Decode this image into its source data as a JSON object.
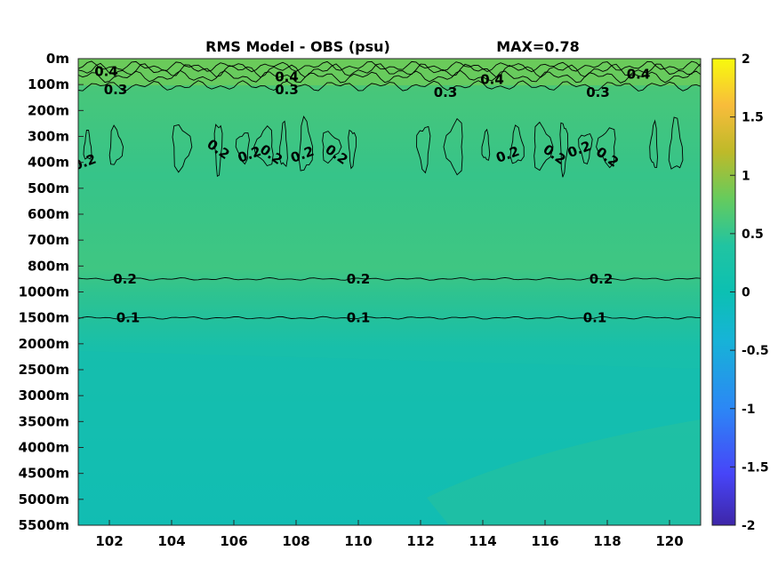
{
  "chart_data": {
    "type": "heatmap",
    "title": "RMS Model - OBS (psu)",
    "max_label": "MAX=0.78",
    "xlim": [
      101,
      121
    ],
    "x_ticks": [
      "102",
      "104",
      "106",
      "108",
      "110",
      "112",
      "114",
      "116",
      "118",
      "120"
    ],
    "y_ticks": [
      "0m",
      "100m",
      "200m",
      "300m",
      "400m",
      "500m",
      "600m",
      "700m",
      "800m",
      "1000m",
      "1500m",
      "2000m",
      "2500m",
      "3000m",
      "3500m",
      "4000m",
      "4500m",
      "5000m",
      "5500m"
    ],
    "colorbar": {
      "range": [
        -2,
        2
      ],
      "ticks": [
        "2",
        "1.5",
        "1",
        "0.5",
        "0",
        "-0.5",
        "-1",
        "-1.5",
        "-2"
      ]
    },
    "colormap": [
      "#3e26a8",
      "#4745f8",
      "#2c87f5",
      "#16b4d6",
      "#0cc0b2",
      "#21c4a1",
      "#66cb5d",
      "#beba29",
      "#f8bc3b",
      "#f8fa0d"
    ],
    "contour_levels": [
      0.1,
      0.2,
      0.3,
      0.4
    ],
    "contour_labels": [
      {
        "text": "0.4",
        "x": 101.9,
        "depth_m": 50
      },
      {
        "text": "0.3",
        "x": 102.2,
        "depth_m": 120
      },
      {
        "text": "0.4",
        "x": 107.7,
        "depth_m": 70
      },
      {
        "text": "0.3",
        "x": 107.7,
        "depth_m": 120
      },
      {
        "text": "0.4",
        "x": 114.3,
        "depth_m": 80
      },
      {
        "text": "0.3",
        "x": 112.8,
        "depth_m": 130
      },
      {
        "text": "0.4",
        "x": 119.0,
        "depth_m": 60
      },
      {
        "text": "0.3",
        "x": 117.7,
        "depth_m": 130
      },
      {
        "text": "0.2",
        "x": 101.2,
        "depth_m": 400
      },
      {
        "text": "0.2",
        "x": 105.5,
        "depth_m": 350
      },
      {
        "text": "0.2",
        "x": 106.5,
        "depth_m": 370
      },
      {
        "text": "0.2",
        "x": 107.2,
        "depth_m": 370
      },
      {
        "text": "0.2",
        "x": 108.2,
        "depth_m": 370
      },
      {
        "text": "0.2",
        "x": 109.3,
        "depth_m": 370
      },
      {
        "text": "0.2",
        "x": 114.8,
        "depth_m": 370
      },
      {
        "text": "0.2",
        "x": 116.3,
        "depth_m": 370
      },
      {
        "text": "0.2",
        "x": 117.1,
        "depth_m": 350
      },
      {
        "text": "0.2",
        "x": 118.0,
        "depth_m": 380
      },
      {
        "text": "0.2",
        "x": 102.5,
        "depth_m": 900
      },
      {
        "text": "0.2",
        "x": 110.0,
        "depth_m": 900
      },
      {
        "text": "0.2",
        "x": 117.8,
        "depth_m": 900
      },
      {
        "text": "0.1",
        "x": 102.6,
        "depth_m": 1500
      },
      {
        "text": "0.1",
        "x": 110.0,
        "depth_m": 1500
      },
      {
        "text": "0.1",
        "x": 117.6,
        "depth_m": 1500
      }
    ],
    "contour_lines": [
      {
        "level": 0.2,
        "depth_m": 900
      },
      {
        "level": 0.1,
        "depth_m": 1500
      }
    ],
    "grid": false,
    "legend": "none"
  }
}
